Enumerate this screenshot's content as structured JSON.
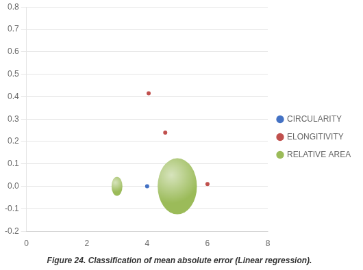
{
  "chart_data": {
    "type": "scatter",
    "caption": "Figure 24. Classification of mean absolute error (Linear regression).",
    "xlim": [
      0,
      8
    ],
    "xticks": [
      0,
      2,
      4,
      6,
      8
    ],
    "ylim": [
      -0.2,
      0.8
    ],
    "yticks": [
      -0.2,
      -0.1,
      {
        "value": 0,
        "label": "0.0"
      },
      0.1,
      0.2,
      0.3,
      0.4,
      0.5,
      0.6,
      0.7,
      0.8
    ],
    "grid": "y",
    "legend": "right",
    "series": [
      {
        "name": "CIRCULARITY",
        "color": "#4472C4",
        "x": [
          4.0
        ],
        "values": [
          0.0
        ]
      },
      {
        "name": "ELONGITIVITY",
        "color": "#C0504D",
        "x": [
          4.05,
          4.6,
          6.0
        ],
        "values": [
          0.415,
          0.24,
          0.01
        ]
      },
      {
        "name": "RELATIVE AREA",
        "type": "bubble",
        "color": "#9BBB59",
        "x": [
          5.0,
          3.0
        ],
        "values": [
          0.0,
          0.0
        ],
        "rx": [
          0.65,
          0.18
        ],
        "ry": [
          0.125,
          0.0425
        ]
      }
    ]
  }
}
